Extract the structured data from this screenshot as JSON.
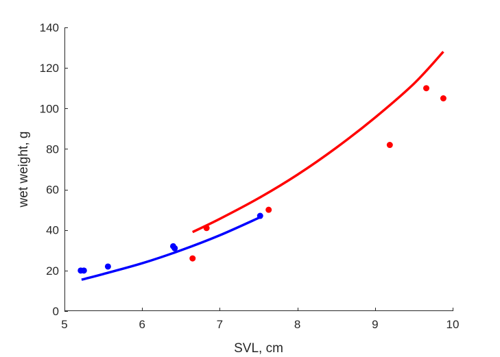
{
  "chart_data": {
    "type": "scatter",
    "title": "",
    "xlabel": "SVL, cm",
    "ylabel": "wet weight, g",
    "xlim": [
      5,
      10
    ],
    "ylim": [
      0,
      140
    ],
    "x_ticks": [
      5,
      6,
      7,
      8,
      9,
      10
    ],
    "y_ticks": [
      0,
      20,
      40,
      60,
      80,
      100,
      120,
      140
    ],
    "grid": false,
    "series": [
      {
        "color": "#0000ff",
        "points": [
          {
            "x": 5.21,
            "y": 20
          },
          {
            "x": 5.25,
            "y": 20
          },
          {
            "x": 5.56,
            "y": 22
          },
          {
            "x": 6.4,
            "y": 32
          },
          {
            "x": 6.42,
            "y": 31
          },
          {
            "x": 7.52,
            "y": 47
          }
        ],
        "fit_curve": [
          {
            "x": 5.22,
            "y": 15.5
          },
          {
            "x": 5.5,
            "y": 18.3
          },
          {
            "x": 6.0,
            "y": 23.6
          },
          {
            "x": 6.5,
            "y": 30.0
          },
          {
            "x": 7.0,
            "y": 37.4
          },
          {
            "x": 7.52,
            "y": 46.3
          }
        ]
      },
      {
        "color": "#ff0000",
        "points": [
          {
            "x": 6.65,
            "y": 26
          },
          {
            "x": 6.83,
            "y": 41
          },
          {
            "x": 7.63,
            "y": 50
          },
          {
            "x": 9.19,
            "y": 82
          },
          {
            "x": 9.66,
            "y": 110
          },
          {
            "x": 9.88,
            "y": 105
          }
        ],
        "fit_curve": [
          {
            "x": 6.65,
            "y": 39.0
          },
          {
            "x": 7.0,
            "y": 45.5
          },
          {
            "x": 7.5,
            "y": 55.7
          },
          {
            "x": 8.0,
            "y": 67.3
          },
          {
            "x": 8.5,
            "y": 80.6
          },
          {
            "x": 9.0,
            "y": 95.5
          },
          {
            "x": 9.5,
            "y": 112.2
          },
          {
            "x": 9.88,
            "y": 128.0
          }
        ]
      }
    ]
  }
}
